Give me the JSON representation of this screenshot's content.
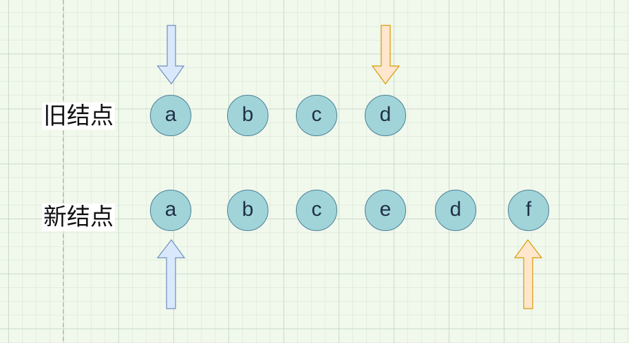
{
  "diagram": {
    "old_row": {
      "label": "旧结点",
      "nodes": [
        "a",
        "b",
        "c",
        "d"
      ]
    },
    "new_row": {
      "label": "新结点",
      "nodes": [
        "a",
        "b",
        "c",
        "e",
        "d",
        "f"
      ]
    },
    "pointers": {
      "old_start": {
        "color_fill": "#dae8fc",
        "color_stroke": "#6c8ebf",
        "direction": "down",
        "target": "a"
      },
      "old_end": {
        "color_fill": "#ffe6cc",
        "color_stroke": "#d79b00",
        "direction": "down",
        "target": "d"
      },
      "new_start": {
        "color_fill": "#dae8fc",
        "color_stroke": "#6c8ebf",
        "direction": "up",
        "target": "a"
      },
      "new_end": {
        "color_fill": "#ffe6cc",
        "color_stroke": "#d79b00",
        "direction": "up",
        "target": "f"
      }
    },
    "colors": {
      "node_fill": "#a1d4d9",
      "node_stroke": "#4a7f96",
      "node_text": "#1f3047",
      "guide_line": "#aaaaaa"
    }
  }
}
